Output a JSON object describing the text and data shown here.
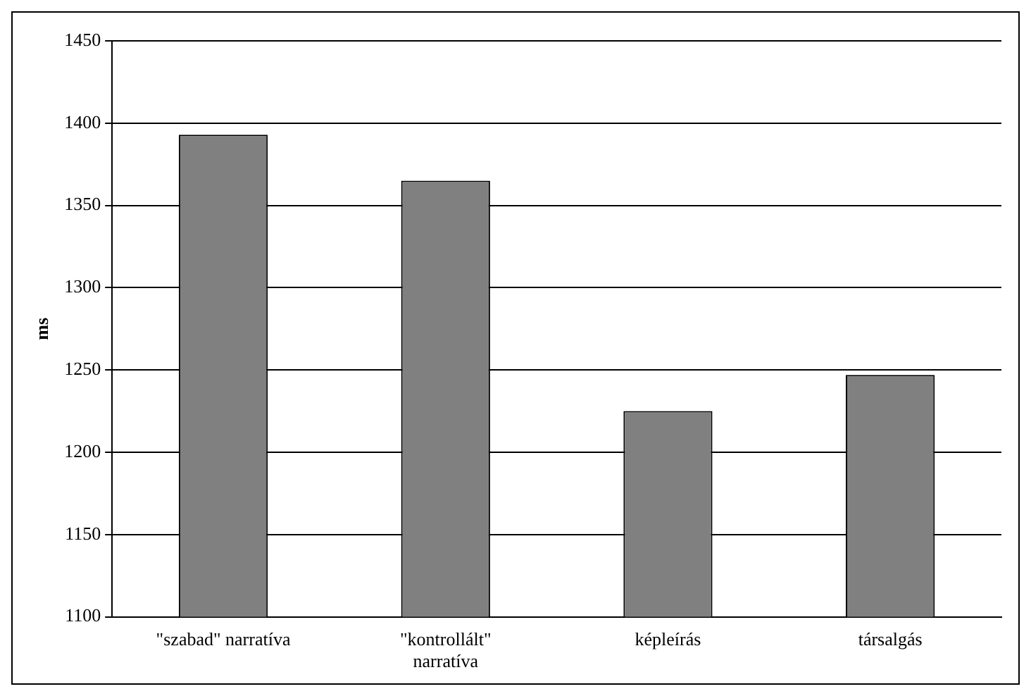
{
  "chart_data": {
    "type": "bar",
    "ylabel": "ms",
    "categories": [
      "\"szabad\" narratíva",
      "\"kontrollált\" narratíva",
      "képleírás",
      "társalgás"
    ],
    "values": [
      1393,
      1365,
      1225,
      1247
    ],
    "color": "#808080",
    "ylim": [
      1100,
      1450
    ],
    "yticks": [
      1100,
      1150,
      1200,
      1250,
      1300,
      1350,
      1400,
      1450
    ],
    "grid": "y",
    "legend": false
  }
}
